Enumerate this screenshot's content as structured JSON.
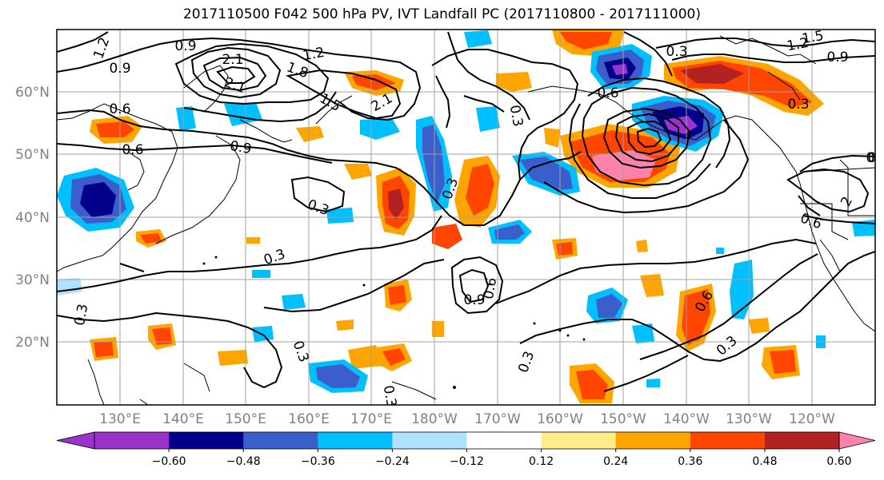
{
  "title": "2017110500 F042 500 hPa PV, IVT Landfall PC (2017110800 - 2017111000)",
  "lat_labels": [
    "60°N",
    "50°N",
    "40°N",
    "30°N",
    "20°N"
  ],
  "lon_labels": [
    "130°E",
    "140°E",
    "150°E",
    "160°E",
    "170°E",
    "180°W",
    "170°W",
    "160°W",
    "150°W",
    "140°W",
    "130°W",
    "120°W"
  ],
  "colorbar": {
    "ticks": [
      "−0.60",
      "−0.48",
      "−0.36",
      "−0.24",
      "−0.12",
      "0.12",
      "0.24",
      "0.36",
      "0.48",
      "0.60"
    ],
    "colors": [
      "#9933cc",
      "#00008b",
      "#3a5fcd",
      "#00bfff",
      "#b0e2ff",
      "#ffffff",
      "#ffec8b",
      "#ffa500",
      "#ff4500",
      "#b22222",
      "#ff82ab",
      "#ff82ab"
    ]
  },
  "contour_labels": [
    "1.2",
    "0.9",
    "0.6",
    "0.9",
    "1.2",
    "2.1",
    "1.8",
    "2.1",
    "1.5",
    "2.1",
    "0.9",
    "0.6",
    "0.3",
    "0.3",
    "0.3",
    "0.3",
    "0.6",
    "0.9",
    "0.3",
    "0.3",
    "0.3",
    "0.3",
    "0.3",
    "0.6",
    "0.3",
    "0.6",
    "0.3",
    "1.5",
    "1.2",
    "0.9",
    "0.3",
    "0.6",
    "0",
    "2"
  ]
}
